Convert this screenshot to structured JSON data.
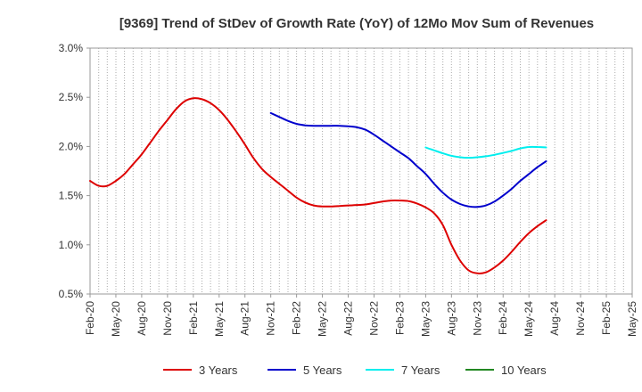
{
  "chart_data": {
    "type": "line",
    "title": "[9369]  Trend of StDev of Growth Rate (YoY) of 12Mo Mov Sum of Revenues",
    "xlabel": "",
    "ylabel": "",
    "ylim": [
      0.5,
      3.0
    ],
    "yticks": [
      0.5,
      1.0,
      1.5,
      2.0,
      2.5,
      3.0
    ],
    "ytick_labels": [
      "0.5%",
      "1.0%",
      "1.5%",
      "2.0%",
      "2.5%",
      "3.0%"
    ],
    "x_range": [
      0,
      63
    ],
    "xtick_positions": [
      0,
      3,
      6,
      9,
      12,
      15,
      18,
      21,
      24,
      27,
      30,
      33,
      36,
      39,
      42,
      45,
      48,
      51,
      54,
      57,
      60,
      63
    ],
    "xtick_labels": [
      "Feb-20",
      "May-20",
      "Aug-20",
      "Nov-20",
      "Feb-21",
      "May-21",
      "Aug-21",
      "Nov-21",
      "Feb-22",
      "May-22",
      "Aug-22",
      "Nov-22",
      "Feb-23",
      "May-23",
      "Aug-23",
      "Nov-23",
      "Feb-24",
      "May-24",
      "Aug-24",
      "Nov-24",
      "Feb-25",
      "May-25"
    ],
    "grid": "vertical-dotted",
    "legend_position": "bottom",
    "series": [
      {
        "name": "3 Years",
        "color": "#dd0000",
        "points": [
          [
            0,
            1.65
          ],
          [
            1,
            1.6
          ],
          [
            2,
            1.6
          ],
          [
            3,
            1.65
          ],
          [
            4,
            1.72
          ],
          [
            5,
            1.82
          ],
          [
            6,
            1.92
          ],
          [
            7,
            2.04
          ],
          [
            8,
            2.16
          ],
          [
            9,
            2.27
          ],
          [
            10,
            2.38
          ],
          [
            11,
            2.46
          ],
          [
            12,
            2.49
          ],
          [
            13,
            2.48
          ],
          [
            14,
            2.44
          ],
          [
            15,
            2.37
          ],
          [
            16,
            2.27
          ],
          [
            17,
            2.15
          ],
          [
            18,
            2.02
          ],
          [
            19,
            1.88
          ],
          [
            20,
            1.77
          ],
          [
            21,
            1.69
          ],
          [
            22,
            1.62
          ],
          [
            23,
            1.55
          ],
          [
            24,
            1.48
          ],
          [
            25,
            1.43
          ],
          [
            26,
            1.4
          ],
          [
            27,
            1.39
          ],
          [
            28,
            1.39
          ],
          [
            29,
            1.395
          ],
          [
            30,
            1.4
          ],
          [
            31,
            1.405
          ],
          [
            32,
            1.41
          ],
          [
            33,
            1.425
          ],
          [
            34,
            1.44
          ],
          [
            35,
            1.45
          ],
          [
            36,
            1.45
          ],
          [
            37,
            1.445
          ],
          [
            38,
            1.42
          ],
          [
            39,
            1.38
          ],
          [
            40,
            1.32
          ],
          [
            41,
            1.2
          ],
          [
            42,
            1.0
          ],
          [
            43,
            0.84
          ],
          [
            44,
            0.74
          ],
          [
            45,
            0.71
          ],
          [
            46,
            0.72
          ],
          [
            47,
            0.77
          ],
          [
            48,
            0.84
          ],
          [
            49,
            0.93
          ],
          [
            50,
            1.03
          ],
          [
            51,
            1.12
          ],
          [
            52,
            1.19
          ],
          [
            53,
            1.25
          ]
        ]
      },
      {
        "name": "5 Years",
        "color": "#0000cc",
        "points": [
          [
            21,
            2.34
          ],
          [
            22,
            2.3
          ],
          [
            23,
            2.26
          ],
          [
            24,
            2.23
          ],
          [
            25,
            2.215
          ],
          [
            26,
            2.21
          ],
          [
            27,
            2.21
          ],
          [
            28,
            2.21
          ],
          [
            29,
            2.21
          ],
          [
            30,
            2.205
          ],
          [
            31,
            2.195
          ],
          [
            32,
            2.17
          ],
          [
            33,
            2.12
          ],
          [
            34,
            2.06
          ],
          [
            35,
            2.0
          ],
          [
            36,
            1.94
          ],
          [
            37,
            1.88
          ],
          [
            38,
            1.8
          ],
          [
            39,
            1.72
          ],
          [
            40,
            1.62
          ],
          [
            41,
            1.53
          ],
          [
            42,
            1.46
          ],
          [
            43,
            1.415
          ],
          [
            44,
            1.39
          ],
          [
            45,
            1.385
          ],
          [
            46,
            1.4
          ],
          [
            47,
            1.44
          ],
          [
            48,
            1.5
          ],
          [
            49,
            1.57
          ],
          [
            50,
            1.65
          ],
          [
            51,
            1.72
          ],
          [
            52,
            1.79
          ],
          [
            53,
            1.85
          ]
        ]
      },
      {
        "name": "7 Years",
        "color": "#00eeee",
        "points": [
          [
            39,
            1.99
          ],
          [
            40,
            1.96
          ],
          [
            41,
            1.93
          ],
          [
            42,
            1.905
          ],
          [
            43,
            1.89
          ],
          [
            44,
            1.885
          ],
          [
            45,
            1.89
          ],
          [
            46,
            1.9
          ],
          [
            47,
            1.915
          ],
          [
            48,
            1.935
          ],
          [
            49,
            1.955
          ],
          [
            50,
            1.98
          ],
          [
            51,
            1.995
          ],
          [
            52,
            1.995
          ],
          [
            53,
            1.99
          ]
        ]
      },
      {
        "name": "10 Years",
        "color": "#228822",
        "points": []
      }
    ]
  }
}
